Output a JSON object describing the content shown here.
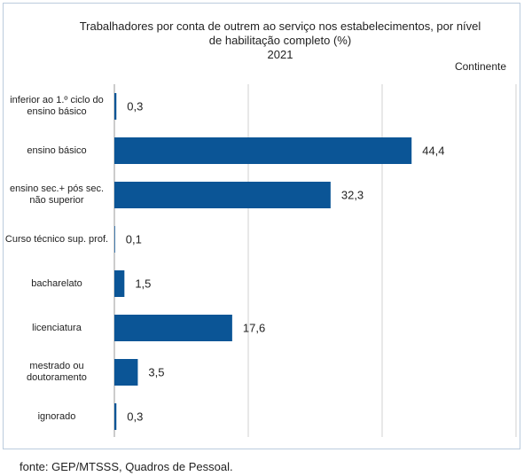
{
  "chart_data": {
    "type": "bar",
    "orientation": "horizontal",
    "title": "Trabalhadores por conta de outrem ao serviço nos estabelecimentos, por nível de habilitação completo (%)",
    "subtitle": "2021",
    "annotation": "Continente",
    "source": "fonte: GEP/MTSSS, Quadros de Pessoal.",
    "categories": [
      "inferior ao 1.º ciclo do ensino básico",
      "ensino básico",
      "ensino sec.+ pós sec. não superior",
      "Curso técnico sup. prof.",
      "bacharelato",
      "licenciatura",
      "mestrado ou doutoramento",
      "ignorado"
    ],
    "values": [
      0.3,
      44.4,
      32.3,
      0.1,
      1.5,
      17.6,
      3.5,
      0.3
    ],
    "value_labels": [
      "0,3",
      "44,4",
      "32,3",
      "0,1",
      "1,5",
      "17,6",
      "3,5",
      "0,3"
    ],
    "color": "#0b5596",
    "xlim": [
      0,
      60
    ],
    "xticks": [
      0,
      20,
      40,
      60
    ],
    "grid": true
  }
}
